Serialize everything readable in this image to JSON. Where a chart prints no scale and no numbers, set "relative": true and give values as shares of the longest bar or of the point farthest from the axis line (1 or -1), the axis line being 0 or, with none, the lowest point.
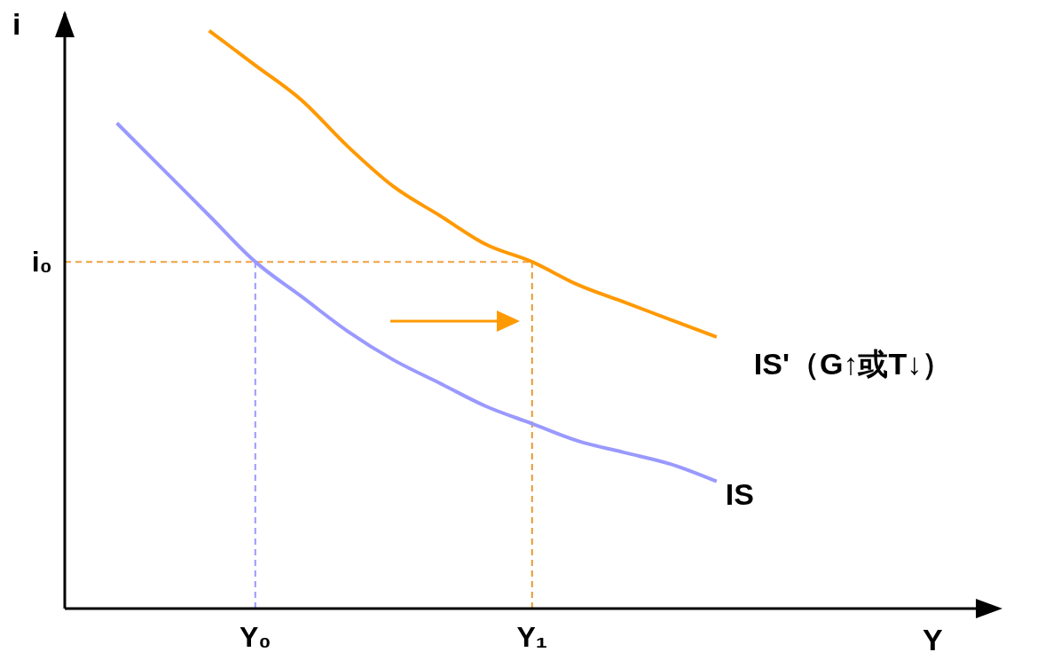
{
  "chart_data": {
    "type": "line",
    "relative": true,
    "xlabel": "Y",
    "ylabel": "i",
    "categories": [
      null,
      null,
      null,
      "Y₀",
      null,
      null,
      null,
      null,
      null,
      "Y₁",
      null,
      null,
      null,
      null,
      null,
      null,
      null,
      null,
      null,
      null
    ],
    "series": [
      {
        "name": "IS",
        "color": "#9999ff",
        "values": [
          0.84,
          0.76,
          0.68,
          0.6,
          0.54,
          0.48,
          0.43,
          0.39,
          0.35,
          0.32,
          0.29,
          0.27,
          0.25,
          0.22,
          null,
          null,
          null,
          null,
          null,
          null
        ]
      },
      {
        "name": "IS'（G↑或T↓）",
        "color": "#ff9900",
        "values": [
          null,
          null,
          1.0,
          0.94,
          0.88,
          0.8,
          0.73,
          0.68,
          0.63,
          0.6,
          0.56,
          0.53,
          0.5,
          0.47,
          null,
          null,
          null,
          null,
          null,
          null
        ]
      }
    ],
    "ref_lines": [
      {
        "axis": "y",
        "value": 0.6,
        "label": "i₀",
        "color": "#f0a040",
        "line_style": "dashed"
      },
      {
        "axis": "x",
        "value": "Y₀",
        "color": "#9999ff",
        "line_style": "dashed"
      },
      {
        "axis": "x",
        "value": "Y₁",
        "color": "#e89a30",
        "line_style": "dashed"
      }
    ],
    "grid": false,
    "legend": false,
    "marker": "none",
    "line_style": "solid"
  }
}
